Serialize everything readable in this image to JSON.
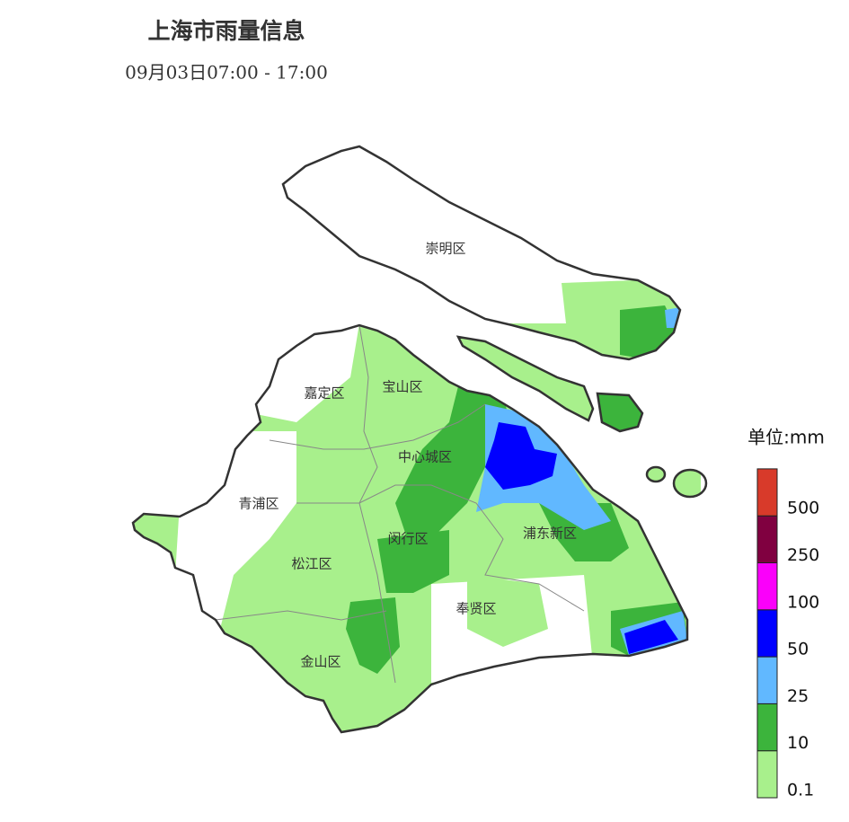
{
  "header": {
    "title": "上海市雨量信息",
    "subtitle": "09月03日07:00 - 17:00"
  },
  "districts": [
    "崇明区",
    "嘉定区",
    "宝山区",
    "中心城区",
    "青浦区",
    "闵行区",
    "浦东新区",
    "松江区",
    "奉贤区",
    "金山区"
  ],
  "legend": {
    "title": "单位:mm",
    "levels": [
      {
        "value": 0.1,
        "color": "#a8f08c"
      },
      {
        "value": 10,
        "color": "#3cb43c"
      },
      {
        "value": 25,
        "color": "#61b8ff"
      },
      {
        "value": 50,
        "color": "#0000ff"
      },
      {
        "value": 100,
        "color": "#fa00fa"
      },
      {
        "value": 250,
        "color": "#800040"
      },
      {
        "value": 500,
        "color": "#d83a2a"
      }
    ]
  }
}
